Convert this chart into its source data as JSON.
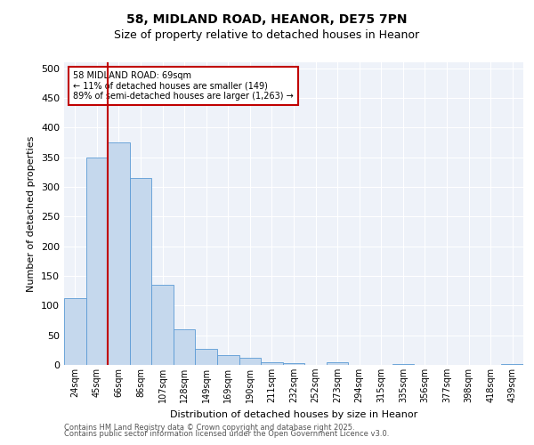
{
  "title1": "58, MIDLAND ROAD, HEANOR, DE75 7PN",
  "title2": "Size of property relative to detached houses in Heanor",
  "xlabel": "Distribution of detached houses by size in Heanor",
  "ylabel": "Number of detached properties",
  "categories": [
    "24sqm",
    "45sqm",
    "66sqm",
    "86sqm",
    "107sqm",
    "128sqm",
    "149sqm",
    "169sqm",
    "190sqm",
    "211sqm",
    "232sqm",
    "252sqm",
    "273sqm",
    "294sqm",
    "315sqm",
    "335sqm",
    "356sqm",
    "377sqm",
    "398sqm",
    "418sqm",
    "439sqm"
  ],
  "values": [
    113,
    350,
    375,
    315,
    135,
    60,
    27,
    17,
    12,
    5,
    3,
    0,
    4,
    0,
    0,
    1,
    0,
    0,
    0,
    0,
    1
  ],
  "bar_color": "#c5d8ed",
  "bar_edge_color": "#5b9bd5",
  "vline_color": "#c00000",
  "annotation_title": "58 MIDLAND ROAD: 69sqm",
  "annotation_line1": "← 11% of detached houses are smaller (149)",
  "annotation_line2": "89% of semi-detached houses are larger (1,263) →",
  "annotation_box_edge_color": "#c00000",
  "ylim": [
    0,
    510
  ],
  "yticks": [
    0,
    50,
    100,
    150,
    200,
    250,
    300,
    350,
    400,
    450,
    500
  ],
  "footnote1": "Contains HM Land Registry data © Crown copyright and database right 2025.",
  "footnote2": "Contains public sector information licensed under the Open Government Licence v3.0.",
  "bg_color": "#eef2f9",
  "fig_bg_color": "#ffffff",
  "title1_fontsize": 10,
  "title2_fontsize": 9,
  "ylabel_fontsize": 8,
  "xlabel_fontsize": 8,
  "tick_fontsize": 7,
  "footnote_fontsize": 6,
  "vline_x": 1.5
}
